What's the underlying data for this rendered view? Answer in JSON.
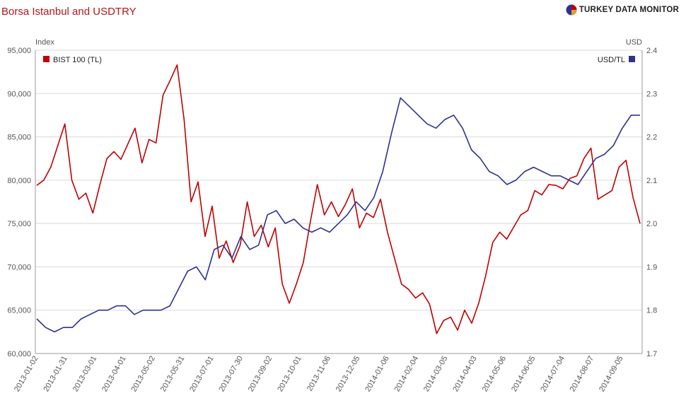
{
  "header": {
    "title": "Borsa Istanbul and USDTRY",
    "brand": "TURKEY DATA MONITOR"
  },
  "chart_data": {
    "type": "line",
    "title": "Borsa Istanbul and USDTRY",
    "y_left_label": "Index",
    "y_right_label": "USD",
    "y_left_range": [
      60000,
      95000
    ],
    "y_right_range": [
      1.7,
      2.4
    ],
    "y_left_ticks": [
      "60,000",
      "65,000",
      "70,000",
      "75,000",
      "80,000",
      "85,000",
      "90,000",
      "95,000"
    ],
    "y_right_ticks": [
      "1.7",
      "1.8",
      "1.9",
      "2.0",
      "2.1",
      "2.2",
      "2.3",
      "2.4"
    ],
    "x_ticks": [
      "2013-01-02",
      "2013-01-31",
      "2013-03-01",
      "2013-04-01",
      "2013-05-02",
      "2013-05-31",
      "2013-07-01",
      "2013-07-30",
      "2013-09-02",
      "2013-10-01",
      "2013-11-06",
      "2013-12-05",
      "2014-01-06",
      "2014-02-04",
      "2014-03-05",
      "2014-04-03",
      "2014-05-06",
      "2014-06-05",
      "2014-07-04",
      "2014-08-07",
      "2014-09-05"
    ],
    "x_tick_fraction": [
      0.0,
      0.0482,
      0.0964,
      0.1446,
      0.1928,
      0.241,
      0.2892,
      0.3374,
      0.3855,
      0.4337,
      0.4819,
      0.5301,
      0.5783,
      0.6265,
      0.6747,
      0.7229,
      0.7711,
      0.8193,
      0.8675,
      0.9157,
      0.9639
    ],
    "grid": true,
    "legend_position": "top",
    "colors": {
      "bist": "#c00000",
      "usd": "#2e3192"
    },
    "series": [
      {
        "name": "BIST 100 (TL)",
        "axis": "left",
        "color": "#c00000",
        "values": [
          79400,
          80000,
          81500,
          84000,
          86500,
          80000,
          77800,
          78500,
          76200,
          79500,
          82500,
          83300,
          82400,
          84200,
          86000,
          82000,
          84700,
          84300,
          89800,
          91500,
          93300,
          87000,
          77500,
          79800,
          73500,
          77000,
          71000,
          73000,
          70500,
          72500,
          77500,
          73500,
          74800,
          72300,
          74500,
          68000,
          65800,
          68000,
          70500,
          75200,
          79500,
          76000,
          77500,
          75800,
          77200,
          79000,
          74500,
          76200,
          75700,
          77800,
          74000,
          71000,
          68000,
          67400,
          66400,
          67000,
          65700,
          62300,
          63800,
          64200,
          62700,
          65000,
          63500,
          65800,
          69000,
          72800,
          74000,
          73200,
          74600,
          76000,
          76500,
          78800,
          78300,
          79500,
          79400,
          79000,
          80200,
          80500,
          82500,
          83700,
          77800,
          78300,
          78800,
          81500,
          82300,
          78000,
          75000
        ]
      },
      {
        "name": "USD/TL",
        "axis": "right",
        "color": "#2e3192",
        "values": [
          1.78,
          1.76,
          1.75,
          1.76,
          1.76,
          1.78,
          1.79,
          1.8,
          1.8,
          1.81,
          1.81,
          1.79,
          1.8,
          1.8,
          1.8,
          1.81,
          1.85,
          1.89,
          1.9,
          1.87,
          1.94,
          1.95,
          1.92,
          1.97,
          1.94,
          1.95,
          2.02,
          2.03,
          2.0,
          2.01,
          1.99,
          1.98,
          1.99,
          1.98,
          2.0,
          2.02,
          2.05,
          2.03,
          2.06,
          2.12,
          2.21,
          2.29,
          2.27,
          2.25,
          2.23,
          2.22,
          2.24,
          2.25,
          2.22,
          2.17,
          2.15,
          2.12,
          2.11,
          2.09,
          2.1,
          2.12,
          2.13,
          2.12,
          2.11,
          2.11,
          2.1,
          2.09,
          2.12,
          2.15,
          2.16,
          2.18,
          2.22,
          2.25,
          2.25
        ]
      }
    ]
  }
}
